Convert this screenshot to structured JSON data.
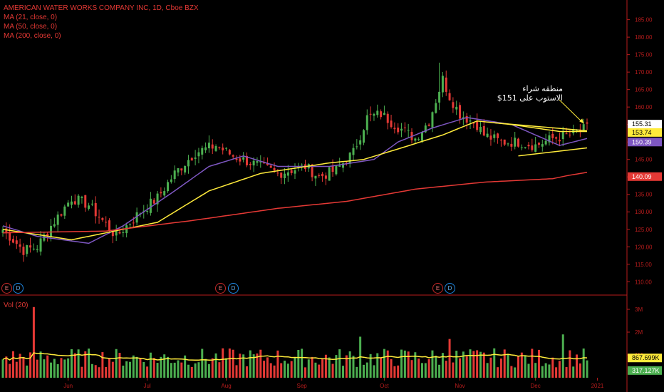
{
  "legend": {
    "title": "AMERICAN WATER WORKS COMPANY INC, 1D, Cboe BZX",
    "ma21": "MA (21, close, 0)",
    "ma50": "MA (50, close, 0)",
    "ma200": "MA (200, close, 0)",
    "vol": "Vol (20)"
  },
  "annotation": {
    "line1": "منطقه شراء",
    "line2": "الاستوب على 151$"
  },
  "events": [
    {
      "type": "E",
      "label": "E"
    },
    {
      "type": "D",
      "label": "D"
    },
    {
      "type": "E",
      "label": "E"
    },
    {
      "type": "D",
      "label": "D"
    },
    {
      "type": "E",
      "label": "E"
    },
    {
      "type": "D",
      "label": "D"
    }
  ],
  "colors": {
    "background": "#000000",
    "up": "#4caf50",
    "down": "#e53935",
    "ma21": "#7e57c2",
    "ma50": "#ffeb3b",
    "ma200": "#e53935",
    "divider": "#b71c1c"
  },
  "chart_data": [
    {
      "type": "candlestick",
      "title": "AMERICAN WATER WORKS COMPANY INC, 1D, Cboe BZX",
      "ylim": [
        107,
        189
      ],
      "y_ticks": [
        "185.00",
        "180.00",
        "175.00",
        "170.00",
        "165.00",
        "160.00",
        "155.00",
        "150.00",
        "145.00",
        "140.00",
        "135.00",
        "130.00",
        "125.00",
        "120.00",
        "115.00",
        "110.00"
      ],
      "x_ticks": [
        "Jun",
        "Jul",
        "Aug",
        "Sep",
        "Oct",
        "Nov",
        "Dec",
        "2021"
      ],
      "price_tags": [
        {
          "label": "155.31",
          "value": 155.31,
          "color": "#ffffff"
        },
        {
          "label": "153.74",
          "value": 153.74,
          "color": "#ffeb3b"
        },
        {
          "label": "150.39",
          "value": 150.39,
          "color": "#7e57c2"
        },
        {
          "label": "140.09",
          "value": 140.09,
          "color": "#e53935"
        }
      ],
      "series": [
        {
          "name": "MA (21, close, 0)",
          "anchors": [
            [
              0,
              126
            ],
            [
              10,
              123
            ],
            [
              25,
              121
            ],
            [
              35,
              126
            ],
            [
              50,
              136
            ],
            [
              60,
              143
            ],
            [
              70,
              146
            ],
            [
              80,
              143
            ],
            [
              95,
              143
            ],
            [
              108,
              145
            ],
            [
              115,
              150
            ],
            [
              125,
              154
            ],
            [
              135,
              157
            ],
            [
              148,
              155
            ],
            [
              155,
              152
            ],
            [
              162,
              149
            ],
            [
              170,
              151
            ]
          ]
        },
        {
          "name": "MA (50, close, 0)",
          "anchors": [
            [
              0,
              125
            ],
            [
              20,
              122
            ],
            [
              30,
              124
            ],
            [
              45,
              127
            ],
            [
              60,
              136
            ],
            [
              75,
              141
            ],
            [
              95,
              144
            ],
            [
              105,
              145
            ],
            [
              115,
              148
            ],
            [
              128,
              152
            ],
            [
              138,
              156
            ],
            [
              148,
              155
            ],
            [
              162,
              153
            ],
            [
              170,
              153
            ]
          ]
        },
        {
          "name": "MA (200, close, 0)",
          "anchors": [
            [
              0,
              124
            ],
            [
              30,
              124.5
            ],
            [
              55,
              127.5
            ],
            [
              80,
              131
            ],
            [
              100,
              133
            ],
            [
              120,
              136.5
            ],
            [
              140,
              138.5
            ],
            [
              160,
              139.5
            ],
            [
              165,
              140.5
            ],
            [
              170,
              141.3
            ]
          ]
        }
      ],
      "close_anchors": [
        [
          0,
          125
        ],
        [
          6,
          119
        ],
        [
          10,
          120
        ],
        [
          14,
          126
        ],
        [
          20,
          134
        ],
        [
          25,
          132
        ],
        [
          33,
          123
        ],
        [
          40,
          130
        ],
        [
          45,
          134
        ],
        [
          50,
          141
        ],
        [
          56,
          147
        ],
        [
          62,
          149
        ],
        [
          67,
          146
        ],
        [
          75,
          143
        ],
        [
          80,
          141
        ],
        [
          88,
          143
        ],
        [
          92,
          140
        ],
        [
          97,
          142
        ],
        [
          102,
          147
        ],
        [
          106,
          157
        ],
        [
          110,
          158
        ],
        [
          114,
          155
        ],
        [
          120,
          151
        ],
        [
          124,
          156
        ],
        [
          128,
          168
        ],
        [
          130,
          163
        ],
        [
          133,
          158
        ],
        [
          138,
          155
        ],
        [
          140,
          152
        ],
        [
          145,
          150
        ],
        [
          150,
          150
        ],
        [
          155,
          149
        ],
        [
          160,
          151
        ],
        [
          165,
          152
        ],
        [
          170,
          154
        ]
      ],
      "trendlines": [
        {
          "color": "#ffeb3b",
          "points": [
            [
              143,
              155.5
            ],
            [
              170,
              153.2
            ]
          ]
        },
        {
          "color": "#ffeb3b",
          "points": [
            [
              150,
              146
            ],
            [
              170,
              148.3
            ]
          ]
        }
      ]
    },
    {
      "type": "bar",
      "title": "Vol (20)",
      "ylim": [
        0,
        3.5
      ],
      "unit": "M",
      "y_ticks": [
        "3M",
        "2M",
        "1M"
      ],
      "tags": [
        {
          "label": "867.699K",
          "value": 0.868,
          "color": "#ffeb3b"
        },
        {
          "label": "317.127K",
          "value": 0.317,
          "color": "#4caf50"
        }
      ],
      "spikes": [
        {
          "bar": 9,
          "value": 3.1
        },
        {
          "bar": 104,
          "value": 1.8
        },
        {
          "bar": 130,
          "value": 1.7
        },
        {
          "bar": 163,
          "value": 1.9
        }
      ]
    }
  ]
}
